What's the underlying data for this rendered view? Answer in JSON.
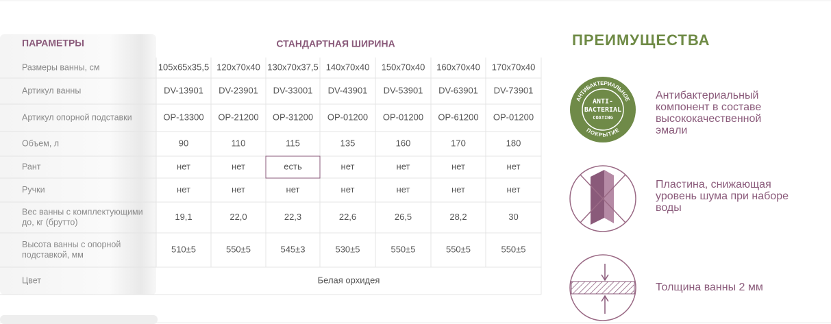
{
  "table": {
    "header": {
      "parameters": "ПАРАМЕТРЫ",
      "group": "СТАНДАРТНАЯ ШИРИНА"
    },
    "rows": [
      {
        "label": [
          "Размеры ванны, см"
        ],
        "cells": [
          "105x65x35,5",
          "120x70x40",
          "130x70x37,5",
          "140x70x40",
          "150x70x40",
          "160x70x40",
          "170x70x40"
        ]
      },
      {
        "label": [
          "Артикул ванны"
        ],
        "cells": [
          "DV-13901",
          "DV-23901",
          "DV-33001",
          "DV-43901",
          "DV-53901",
          "DV-63901",
          "DV-73901"
        ]
      },
      {
        "label": [
          "Артикул опорной подставки"
        ],
        "cells": [
          "OP-13300",
          "OP-21200",
          "OP-31200",
          "OP-01200",
          "OP-01200",
          "OP-61200",
          "OP-01200"
        ]
      },
      {
        "label": [
          "Объем, л"
        ],
        "cells": [
          "90",
          "110",
          "115",
          "135",
          "160",
          "170",
          "180"
        ]
      },
      {
        "label": [
          "Рант"
        ],
        "cells": [
          "нет",
          "нет",
          "есть",
          "нет",
          "нет",
          "нет",
          "нет"
        ]
      },
      {
        "label": [
          "Ручки"
        ],
        "cells": [
          "нет",
          "нет",
          "нет",
          "нет",
          "нет",
          "нет",
          "нет"
        ]
      },
      {
        "label": [
          "Вес ванны с комплектующими",
          "до, кг (брутто)"
        ],
        "cells": [
          "19,1",
          "22,0",
          "22,3",
          "22,6",
          "26,5",
          "28,2",
          "30"
        ]
      },
      {
        "label": [
          "Высота ванны с опорной",
          "подставкой, мм"
        ],
        "cells": [
          "510±5",
          "550±5",
          "545±3",
          "530±5",
          "550±5",
          "550±5",
          "550±5"
        ]
      }
    ],
    "color_row": {
      "label": "Цвет",
      "value": "Белая орхидея"
    }
  },
  "advantages": {
    "title": "ПРЕИМУЩЕСТВА",
    "badge": {
      "ring_top": "АНТИБАКТЕРИАЛЬНОЕ",
      "ring_bottom": "ПОКРЫТИЕ",
      "lines": [
        "ANTI-",
        "BACTERIAL",
        "COATING"
      ]
    },
    "items": [
      {
        "lines": [
          "Антибактериальный",
          "компонент в составе",
          "высококачественной",
          "эмали"
        ]
      },
      {
        "lines": [
          "Пластина, снижающая",
          "уровень шума при наборе",
          "воды"
        ]
      },
      {
        "lines": [
          "Толщина ванны 2 мм"
        ]
      }
    ]
  }
}
